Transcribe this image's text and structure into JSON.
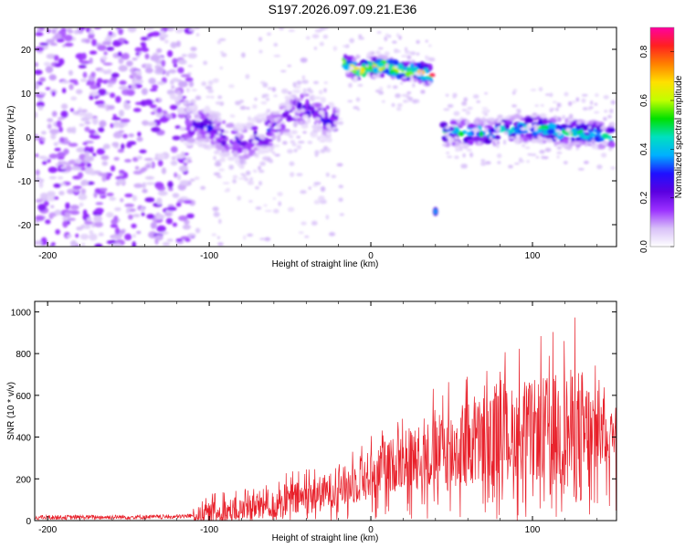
{
  "figure_title": "S197.2026.097.09.21.E36",
  "chart_data": [
    {
      "type": "heatmap",
      "title": "S197.2026.097.09.21.E36",
      "xlabel": "Height of straight line (km)",
      "ylabel": "Frequency (Hz)",
      "xlim": [
        -208,
        152
      ],
      "ylim": [
        -25,
        25
      ],
      "xticks": [
        -200,
        -100,
        0,
        100
      ],
      "yticks": [
        -20,
        -10,
        0,
        10,
        20
      ],
      "colorbar": {
        "label": "Normalized spectral amplitude",
        "range": [
          0.0,
          0.9
        ],
        "ticks": [
          0.0,
          0.2,
          0.4,
          0.6,
          0.8
        ],
        "colors": [
          "#ffffff",
          "#d8c0f8",
          "#9b30ff",
          "#5a00e0",
          "#1f10ff",
          "#00b0ff",
          "#00e0c0",
          "#00e000",
          "#c0ff00",
          "#ffe000",
          "#ff8000",
          "#ff2020",
          "#ff00a0"
        ]
      },
      "features": [
        {
          "name": "broadband noise",
          "x_range": [
            -208,
            -110
          ],
          "y_range": [
            -25,
            25
          ],
          "amplitude": 0.1
        },
        {
          "name": "wavy band",
          "x": [
            -115,
            -100,
            -90,
            -80,
            -70,
            -60,
            -50,
            -42,
            -35,
            -28,
            -20
          ],
          "y": [
            3,
            2,
            0,
            -2,
            0,
            2,
            5,
            7,
            5,
            4,
            3
          ],
          "amplitude": 0.3
        },
        {
          "name": "upper segment",
          "x": [
            -16,
            -8,
            0,
            10,
            20,
            30,
            38
          ],
          "y": [
            17,
            15,
            16,
            16,
            15,
            15,
            14
          ],
          "amplitude": 0.85
        },
        {
          "name": "isolated blob",
          "x": [
            40
          ],
          "y": [
            -17
          ],
          "amplitude": 0.4
        },
        {
          "name": "right band",
          "x": [
            45,
            60,
            75,
            90,
            105,
            120,
            135,
            150
          ],
          "y": [
            1,
            1,
            1,
            2,
            2,
            1,
            1,
            0
          ],
          "amplitude": 0.55
        }
      ]
    },
    {
      "type": "line",
      "title": "",
      "xlabel": "Height of straight line (km)",
      "ylabel": "SNR (10 * v/v)",
      "xlim": [
        -208,
        152
      ],
      "ylim": [
        0,
        1050
      ],
      "xticks": [
        -200,
        -100,
        0,
        100
      ],
      "yticks": [
        0,
        200,
        400,
        600,
        800,
        1000
      ],
      "series": [
        {
          "name": "SNR",
          "color": "#e8202a",
          "envelope_x": [
            -208,
            -120,
            -100,
            -80,
            -60,
            -40,
            -20,
            0,
            20,
            40,
            55,
            70,
            90,
            110,
            130,
            150
          ],
          "envelope_mean": [
            15,
            18,
            30,
            55,
            80,
            110,
            150,
            220,
            290,
            320,
            340,
            380,
            420,
            440,
            400,
            420
          ],
          "envelope_peak": [
            45,
            35,
            130,
            170,
            240,
            260,
            320,
            440,
            540,
            650,
            720,
            800,
            830,
            910,
            1020,
            600
          ]
        }
      ]
    }
  ]
}
